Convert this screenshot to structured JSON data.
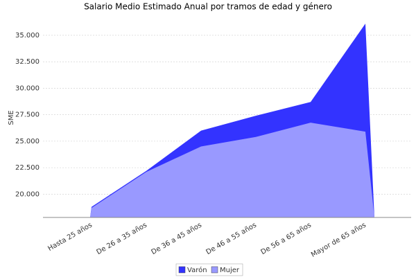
{
  "chart_data": {
    "type": "area",
    "title": "Salario Medio Estimado Anual por tramos de edad y género",
    "y_label": "SME",
    "categories": [
      "Hasta 25  años",
      "De 26  a 35  años",
      "De 36  a 45  años",
      "De 46  a 55  años",
      "De 56  a 65  años",
      "Mayor de 65  años"
    ],
    "series": [
      {
        "name": "Varón",
        "color": "#3333ff",
        "values": [
          18800,
          22200,
          26000,
          27400,
          28700,
          36100
        ]
      },
      {
        "name": "Mujer",
        "color": "#9999ff",
        "values": [
          18700,
          22100,
          24500,
          25400,
          26750,
          25900
        ]
      }
    ],
    "ylim": [
      17800,
      36500
    ],
    "yticks": [
      {
        "value": 20000,
        "label": "20.000"
      },
      {
        "value": 22500,
        "label": "22.500"
      },
      {
        "value": 25000,
        "label": "25.000"
      },
      {
        "value": 27500,
        "label": "27.500"
      },
      {
        "value": 30000,
        "label": "30.000"
      },
      {
        "value": 32500,
        "label": "32.500"
      },
      {
        "value": 35000,
        "label": "35.000"
      }
    ],
    "grid": true,
    "legend": "bottom"
  }
}
